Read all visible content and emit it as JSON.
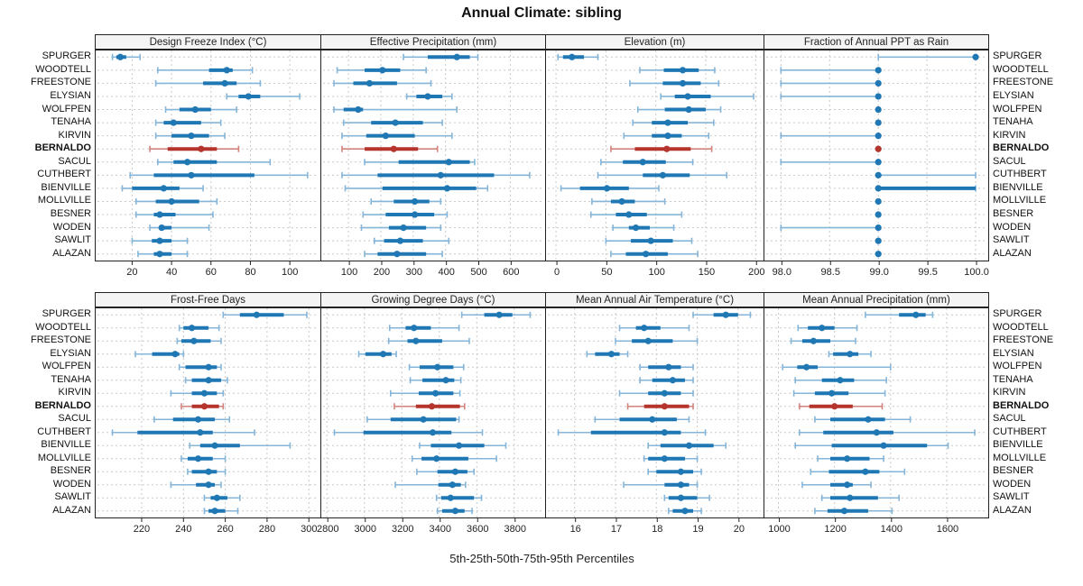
{
  "title": "Annual Climate: sibling",
  "footer": "5th-25th-50th-75th-95th Percentiles",
  "highlight_site": "BERNALDO",
  "sites": [
    "SPURGER",
    "WOODTELL",
    "FREESTONE",
    "ELYSIAN",
    "WOLFPEN",
    "TENAHA",
    "KIRVIN",
    "BERNALDO",
    "SACUL",
    "CUTHBERT",
    "BIENVILLE",
    "MOLLVILLE",
    "BESNER",
    "WODEN",
    "SAWLIT",
    "ALAZAN"
  ],
  "colors": {
    "primary": "#1f77b4",
    "primary_light": "#85b5d8",
    "highlight": "#b5352c",
    "highlight_light": "#d2837c",
    "grid": "#c9c9c9",
    "panel_border": "#222222",
    "header_bg": "#f4f4f4",
    "text": "#111111"
  },
  "chart_data": [
    {
      "type": "percentile-dot",
      "title": "Design Freeze Index (°C)",
      "xlim": [
        1.5,
        115.5
      ],
      "ticks": [
        20,
        40,
        60,
        80,
        100
      ],
      "tick_labels": [
        "20",
        "40",
        "60",
        "80",
        "100"
      ],
      "values": [
        [
          10,
          12,
          14,
          17,
          24
        ],
        [
          33,
          59,
          68,
          71,
          81
        ],
        [
          32,
          56,
          67,
          73,
          85
        ],
        [
          68,
          74,
          79,
          85,
          105
        ],
        [
          37,
          44,
          52,
          60,
          73
        ],
        [
          32,
          36,
          41,
          55,
          65
        ],
        [
          32,
          40,
          50,
          59,
          67
        ],
        [
          29,
          38,
          55,
          63,
          74
        ],
        [
          33,
          41,
          48,
          63,
          90
        ],
        [
          19,
          31,
          50,
          82,
          109
        ],
        [
          15,
          20,
          36,
          44,
          56
        ],
        [
          22,
          32,
          40,
          54,
          63
        ],
        [
          22,
          31,
          34,
          42,
          61
        ],
        [
          29,
          34,
          35,
          40,
          59
        ],
        [
          20,
          30,
          34,
          40,
          48
        ],
        [
          23,
          31,
          34,
          40,
          48
        ]
      ]
    },
    {
      "type": "percentile-dot",
      "title": "Effective Precipitation (mm)",
      "xlim": [
        16,
        705
      ],
      "ticks": [
        100,
        200,
        300,
        400,
        500,
        600
      ],
      "tick_labels": [
        "100",
        "200",
        "300",
        "400",
        "500",
        "600"
      ],
      "values": [
        [
          270,
          345,
          435,
          475,
          500
        ],
        [
          65,
          150,
          205,
          260,
          340
        ],
        [
          55,
          115,
          165,
          250,
          355
        ],
        [
          280,
          310,
          345,
          390,
          420
        ],
        [
          55,
          85,
          130,
          145,
          435
        ],
        [
          85,
          170,
          245,
          330,
          390
        ],
        [
          80,
          155,
          215,
          305,
          420
        ],
        [
          80,
          150,
          240,
          315,
          375
        ],
        [
          150,
          255,
          410,
          475,
          490
        ],
        [
          80,
          190,
          385,
          550,
          660
        ],
        [
          90,
          205,
          405,
          495,
          530
        ],
        [
          170,
          240,
          305,
          350,
          385
        ],
        [
          145,
          215,
          305,
          365,
          405
        ],
        [
          140,
          225,
          270,
          340,
          385
        ],
        [
          180,
          210,
          260,
          330,
          410
        ],
        [
          150,
          190,
          250,
          340,
          390
        ]
      ]
    },
    {
      "type": "percentile-dot",
      "title": "Elevation (m)",
      "xlim": [
        -10,
        207
      ],
      "ticks": [
        0,
        50,
        100,
        150,
        200
      ],
      "tick_labels": [
        "0",
        "50",
        "100",
        "150",
        "200"
      ],
      "values": [
        [
          2,
          7,
          16,
          28,
          42
        ],
        [
          84,
          108,
          127,
          143,
          159
        ],
        [
          74,
          107,
          127,
          145,
          163
        ],
        [
          105,
          119,
          132,
          155,
          198
        ],
        [
          82,
          109,
          133,
          150,
          165
        ],
        [
          77,
          96,
          112,
          132,
          158
        ],
        [
          68,
          96,
          112,
          126,
          153
        ],
        [
          55,
          79,
          111,
          135,
          156
        ],
        [
          45,
          67,
          87,
          110,
          137
        ],
        [
          42,
          87,
          107,
          134,
          171
        ],
        [
          5,
          24,
          51,
          73,
          103
        ],
        [
          36,
          55,
          66,
          79,
          109
        ],
        [
          35,
          60,
          73,
          91,
          126
        ],
        [
          57,
          73,
          80,
          94,
          118
        ],
        [
          50,
          75,
          95,
          117,
          136
        ],
        [
          55,
          70,
          90,
          112,
          142
        ]
      ]
    },
    {
      "type": "percentile-dot",
      "title": "Fraction of Annual PPT as Rain",
      "xlim": [
        97.83,
        100.12
      ],
      "ticks": [
        98.0,
        98.5,
        99.0,
        99.5,
        100.0
      ],
      "tick_labels": [
        "98.0",
        "98.5",
        "99.0",
        "99.5",
        "100.0"
      ],
      "values": [
        [
          99,
          100,
          100,
          100,
          100
        ],
        [
          98,
          99,
          99,
          99,
          99
        ],
        [
          98,
          99,
          99,
          99,
          99
        ],
        [
          98,
          99,
          99,
          99,
          99
        ],
        [
          99,
          99,
          99,
          99,
          99
        ],
        [
          99,
          99,
          99,
          99,
          99
        ],
        [
          98,
          99,
          99,
          99,
          99
        ],
        [
          99,
          99,
          99,
          99,
          99
        ],
        [
          98,
          99,
          99,
          99,
          99
        ],
        [
          99,
          99,
          99,
          99,
          100
        ],
        [
          99,
          99,
          99,
          100,
          100
        ],
        [
          99,
          99,
          99,
          99,
          99
        ],
        [
          99,
          99,
          99,
          99,
          99
        ],
        [
          98,
          99,
          99,
          99,
          99
        ],
        [
          99,
          99,
          99,
          99,
          99
        ],
        [
          99,
          99,
          99,
          99,
          99
        ]
      ]
    },
    {
      "type": "percentile-dot",
      "title": "Frost-Free Days",
      "xlim": [
        198,
        305.5
      ],
      "ticks": [
        220,
        240,
        260,
        280,
        300
      ],
      "tick_labels": [
        "220",
        "240",
        "260",
        "280",
        "300"
      ],
      "values": [
        [
          259,
          267,
          275,
          288,
          299
        ],
        [
          238,
          240,
          244,
          252,
          257
        ],
        [
          237,
          239,
          245,
          253,
          258
        ],
        [
          217,
          225,
          236,
          238,
          240
        ],
        [
          238,
          241,
          252,
          256,
          258
        ],
        [
          241,
          244,
          252,
          258,
          261
        ],
        [
          234,
          244,
          250,
          256,
          259
        ],
        [
          239,
          244,
          250,
          257,
          259
        ],
        [
          226,
          235,
          247,
          255,
          262
        ],
        [
          206,
          218,
          248,
          254,
          274
        ],
        [
          243,
          248,
          255,
          267,
          291
        ],
        [
          239,
          242,
          247,
          254,
          260
        ],
        [
          242,
          244,
          252,
          256,
          260
        ],
        [
          234,
          246,
          252,
          255,
          258
        ],
        [
          250,
          253,
          256,
          261,
          267
        ],
        [
          250,
          252,
          255,
          260,
          266
        ]
      ]
    },
    {
      "type": "percentile-dot",
      "title": "Growing Degree Days (°C)",
      "xlim": [
        2770,
        3960
      ],
      "ticks": [
        2800,
        3000,
        3200,
        3400,
        3600,
        3800
      ],
      "tick_labels": [
        "2800",
        "3000",
        "3200",
        "3400",
        "3600",
        "3800"
      ],
      "values": [
        [
          3520,
          3640,
          3720,
          3790,
          3885
        ],
        [
          3135,
          3220,
          3265,
          3355,
          3505
        ],
        [
          3130,
          3230,
          3275,
          3415,
          3560
        ],
        [
          2970,
          3005,
          3100,
          3145,
          3170
        ],
        [
          3240,
          3295,
          3390,
          3475,
          3530
        ],
        [
          3245,
          3310,
          3435,
          3480,
          3515
        ],
        [
          3140,
          3290,
          3380,
          3475,
          3510
        ],
        [
          3160,
          3275,
          3360,
          3510,
          3535
        ],
        [
          3015,
          3140,
          3315,
          3490,
          3505
        ],
        [
          2840,
          2995,
          3365,
          3465,
          3630
        ],
        [
          3295,
          3355,
          3505,
          3640,
          3755
        ],
        [
          3255,
          3305,
          3385,
          3555,
          3705
        ],
        [
          3280,
          3390,
          3485,
          3550,
          3585
        ],
        [
          3165,
          3395,
          3470,
          3515,
          3540
        ],
        [
          3385,
          3410,
          3460,
          3585,
          3625
        ],
        [
          3390,
          3415,
          3485,
          3535,
          3575
        ]
      ]
    },
    {
      "type": "percentile-dot",
      "title": "Mean Annual Air Temperature (°C)",
      "xlim": [
        15.3,
        20.6
      ],
      "ticks": [
        16,
        17,
        18,
        19,
        20
      ],
      "tick_labels": [
        "16",
        "17",
        "18",
        "19",
        "20"
      ],
      "values": [
        [
          18.9,
          19.4,
          19.7,
          20.0,
          20.3
        ],
        [
          17.1,
          17.5,
          17.7,
          18.1,
          18.8
        ],
        [
          17.0,
          17.4,
          17.8,
          18.4,
          19.0
        ],
        [
          16.3,
          16.5,
          16.9,
          17.1,
          17.3
        ],
        [
          17.6,
          17.8,
          18.3,
          18.6,
          18.9
        ],
        [
          17.6,
          17.9,
          18.4,
          18.7,
          18.9
        ],
        [
          17.1,
          17.8,
          18.2,
          18.6,
          18.9
        ],
        [
          17.3,
          17.7,
          18.2,
          18.8,
          18.9
        ],
        [
          16.5,
          17.1,
          17.9,
          18.5,
          18.8
        ],
        [
          15.6,
          16.4,
          18.2,
          18.6,
          19.2
        ],
        [
          17.8,
          18.1,
          18.8,
          19.4,
          19.7
        ],
        [
          17.7,
          17.8,
          18.2,
          18.7,
          19.0
        ],
        [
          17.8,
          18.0,
          18.6,
          18.9,
          19.1
        ],
        [
          17.2,
          18.2,
          18.6,
          18.8,
          19.0
        ],
        [
          18.2,
          18.3,
          18.6,
          19.0,
          19.3
        ],
        [
          18.3,
          18.4,
          18.7,
          18.9,
          19.1
        ]
      ]
    },
    {
      "type": "percentile-dot",
      "title": "Mean Annual Precipitation (mm)",
      "xlim": [
        950,
        1745
      ],
      "ticks": [
        1000,
        1200,
        1400,
        1600
      ],
      "tick_labels": [
        "1000",
        "1200",
        "1400",
        "1600"
      ],
      "values": [
        [
          1310,
          1430,
          1490,
          1525,
          1550
        ],
        [
          1070,
          1105,
          1155,
          1200,
          1280
        ],
        [
          1045,
          1085,
          1125,
          1185,
          1275
        ],
        [
          1180,
          1195,
          1255,
          1285,
          1330
        ],
        [
          1015,
          1067,
          1100,
          1140,
          1400
        ],
        [
          1060,
          1155,
          1220,
          1270,
          1385
        ],
        [
          1055,
          1130,
          1190,
          1250,
          1380
        ],
        [
          1075,
          1110,
          1200,
          1265,
          1370
        ],
        [
          1130,
          1185,
          1320,
          1380,
          1470
        ],
        [
          1075,
          1160,
          1350,
          1410,
          1700
        ],
        [
          1060,
          1190,
          1375,
          1530,
          1605
        ],
        [
          1140,
          1185,
          1245,
          1325,
          1375
        ],
        [
          1115,
          1180,
          1310,
          1360,
          1450
        ],
        [
          1085,
          1185,
          1245,
          1265,
          1330
        ],
        [
          1155,
          1185,
          1255,
          1355,
          1430
        ],
        [
          1130,
          1175,
          1235,
          1320,
          1405
        ]
      ]
    }
  ]
}
